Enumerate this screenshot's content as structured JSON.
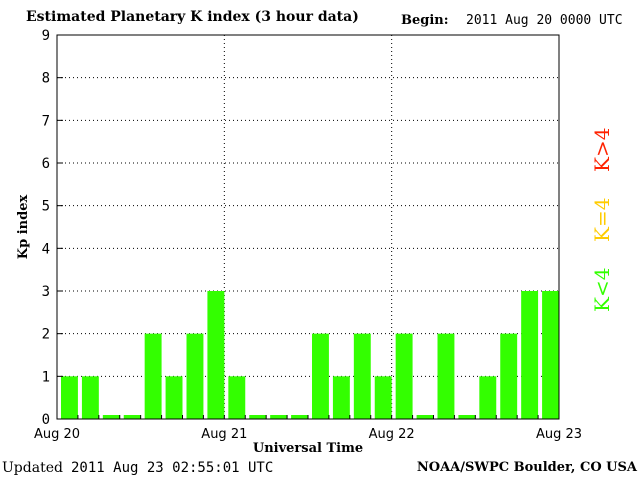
{
  "header": {
    "title": "Estimated Planetary K index (3 hour data)",
    "begin_label": "Begin:",
    "begin_value": "2011 Aug 20 0000 UTC"
  },
  "footer": {
    "updated_label": "Updated",
    "updated_value": "2011 Aug 23 02:55:01 UTC",
    "credit": "NOAA/SWPC Boulder, CO USA"
  },
  "legend": {
    "low": {
      "label": "K<4",
      "color": "#33ff00"
    },
    "mid": {
      "label": "K=4",
      "color": "#ffcc00"
    },
    "high": {
      "label": "K>4",
      "color": "#ff2200"
    }
  },
  "chart_data": {
    "type": "bar",
    "title": "Estimated Planetary K index (3 hour data)",
    "xlabel": "Universal Time",
    "ylabel": "Kp index",
    "ylim": [
      0,
      9
    ],
    "yticks": [
      0,
      1,
      2,
      3,
      4,
      5,
      6,
      7,
      8,
      9
    ],
    "x_day_labels": [
      "Aug 20",
      "Aug 21",
      "Aug 22",
      "Aug 23"
    ],
    "interval_hours": 3,
    "values": [
      1,
      1,
      0,
      0,
      2,
      1,
      2,
      3,
      1,
      0,
      0,
      0,
      2,
      1,
      2,
      1,
      2,
      0,
      2,
      0,
      1,
      2,
      3,
      3
    ],
    "bar_color": "#33ff00",
    "grid": "dotted, day boundaries and integer levels"
  }
}
